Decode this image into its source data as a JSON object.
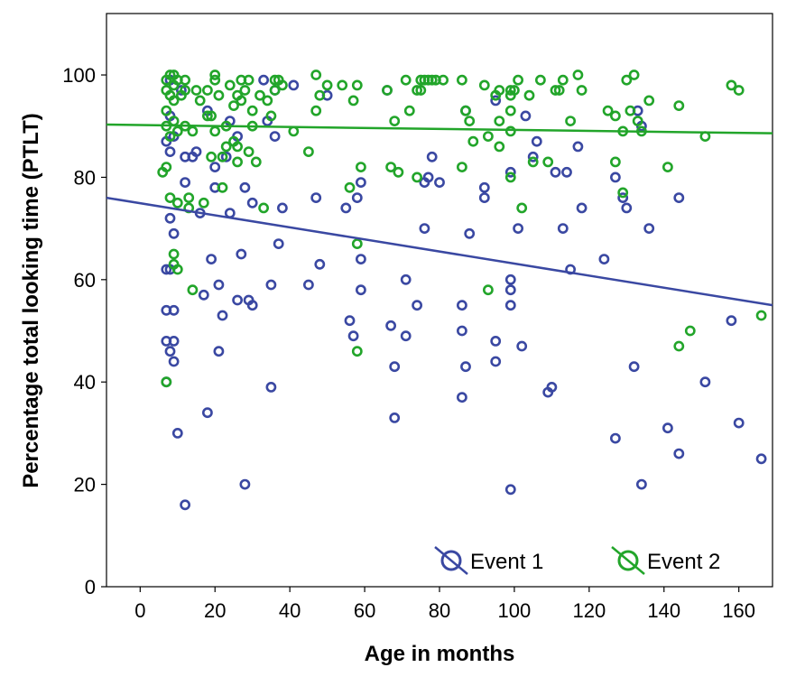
{
  "chart_data": {
    "type": "scatter",
    "xlabel": "Age in months",
    "ylabel": "Percentage total looking time (PTLT)",
    "xlim": [
      -9,
      169
    ],
    "ylim": [
      0,
      112
    ],
    "xticks": [
      0,
      20,
      40,
      60,
      80,
      100,
      120,
      140,
      160
    ],
    "yticks": [
      0,
      20,
      40,
      60,
      80,
      100
    ],
    "grid": false,
    "legend_position": "bottom-right",
    "series": [
      {
        "name": "Event 1",
        "color": "#3a48a2",
        "fit_line": {
          "x": [
            -9,
            169
          ],
          "y": [
            76,
            55
          ]
        },
        "points": [
          [
            7,
            87
          ],
          [
            7,
            62
          ],
          [
            7,
            54
          ],
          [
            7,
            48
          ],
          [
            7,
            40
          ],
          [
            8,
            99
          ],
          [
            8,
            92
          ],
          [
            8,
            85
          ],
          [
            8,
            72
          ],
          [
            8,
            62
          ],
          [
            8,
            46
          ],
          [
            9,
            88
          ],
          [
            9,
            69
          ],
          [
            9,
            54
          ],
          [
            9,
            48
          ],
          [
            9,
            44
          ],
          [
            10,
            30
          ],
          [
            11,
            97
          ],
          [
            12,
            84
          ],
          [
            12,
            79
          ],
          [
            12,
            16
          ],
          [
            14,
            84
          ],
          [
            15,
            85
          ],
          [
            16,
            73
          ],
          [
            17,
            57
          ],
          [
            18,
            93
          ],
          [
            18,
            34
          ],
          [
            19,
            64
          ],
          [
            20,
            82
          ],
          [
            20,
            78
          ],
          [
            21,
            59
          ],
          [
            21,
            46
          ],
          [
            22,
            53
          ],
          [
            23,
            84
          ],
          [
            24,
            91
          ],
          [
            24,
            73
          ],
          [
            26,
            88
          ],
          [
            26,
            56
          ],
          [
            27,
            65
          ],
          [
            28,
            78
          ],
          [
            28,
            20
          ],
          [
            29,
            56
          ],
          [
            30,
            55
          ],
          [
            30,
            75
          ],
          [
            33,
            99
          ],
          [
            34,
            91
          ],
          [
            35,
            59
          ],
          [
            35,
            39
          ],
          [
            36,
            88
          ],
          [
            36,
            97
          ],
          [
            37,
            67
          ],
          [
            38,
            74
          ],
          [
            41,
            98
          ],
          [
            45,
            59
          ],
          [
            47,
            76
          ],
          [
            48,
            63
          ],
          [
            50,
            96
          ],
          [
            55,
            74
          ],
          [
            56,
            52
          ],
          [
            57,
            49
          ],
          [
            58,
            76
          ],
          [
            59,
            64
          ],
          [
            59,
            58
          ],
          [
            59,
            79
          ],
          [
            66,
            97
          ],
          [
            67,
            51
          ],
          [
            68,
            43
          ],
          [
            68,
            33
          ],
          [
            71,
            60
          ],
          [
            71,
            49
          ],
          [
            74,
            55
          ],
          [
            76,
            79
          ],
          [
            76,
            70
          ],
          [
            77,
            80
          ],
          [
            78,
            84
          ],
          [
            80,
            79
          ],
          [
            86,
            55
          ],
          [
            86,
            50
          ],
          [
            86,
            37
          ],
          [
            87,
            93
          ],
          [
            87,
            43
          ],
          [
            88,
            69
          ],
          [
            92,
            78
          ],
          [
            92,
            76
          ],
          [
            95,
            95
          ],
          [
            95,
            48
          ],
          [
            95,
            44
          ],
          [
            99,
            60
          ],
          [
            99,
            58
          ],
          [
            99,
            55
          ],
          [
            99,
            19
          ],
          [
            99,
            81
          ],
          [
            101,
            70
          ],
          [
            102,
            47
          ],
          [
            103,
            92
          ],
          [
            105,
            84
          ],
          [
            106,
            87
          ],
          [
            109,
            38
          ],
          [
            110,
            39
          ],
          [
            111,
            81
          ],
          [
            113,
            70
          ],
          [
            114,
            81
          ],
          [
            115,
            62
          ],
          [
            117,
            86
          ],
          [
            118,
            74
          ],
          [
            124,
            64
          ],
          [
            127,
            29
          ],
          [
            127,
            80
          ],
          [
            129,
            76
          ],
          [
            130,
            74
          ],
          [
            132,
            43
          ],
          [
            133,
            93
          ],
          [
            134,
            90
          ],
          [
            134,
            20
          ],
          [
            136,
            70
          ],
          [
            141,
            31
          ],
          [
            144,
            76
          ],
          [
            144,
            26
          ],
          [
            151,
            40
          ],
          [
            158,
            52
          ],
          [
            160,
            32
          ],
          [
            166,
            25
          ]
        ]
      },
      {
        "name": "Event 2",
        "color": "#22a52a",
        "fit_line": {
          "x": [
            -9,
            169
          ],
          "y": [
            90.3,
            88.6
          ]
        },
        "points": [
          [
            6,
            81
          ],
          [
            7,
            99
          ],
          [
            7,
            97
          ],
          [
            7,
            93
          ],
          [
            7,
            90
          ],
          [
            7,
            82
          ],
          [
            7,
            40
          ],
          [
            8,
            100
          ],
          [
            8,
            96
          ],
          [
            8,
            88
          ],
          [
            8,
            76
          ],
          [
            9,
            100
          ],
          [
            9,
            98
          ],
          [
            9,
            95
          ],
          [
            9,
            91
          ],
          [
            9,
            65
          ],
          [
            9,
            63
          ],
          [
            10,
            99
          ],
          [
            10,
            89
          ],
          [
            10,
            75
          ],
          [
            10,
            62
          ],
          [
            11,
            96
          ],
          [
            12,
            99
          ],
          [
            12,
            97
          ],
          [
            12,
            90
          ],
          [
            13,
            76
          ],
          [
            13,
            74
          ],
          [
            14,
            89
          ],
          [
            14,
            58
          ],
          [
            15,
            97
          ],
          [
            16,
            95
          ],
          [
            17,
            75
          ],
          [
            18,
            97
          ],
          [
            18,
            92
          ],
          [
            19,
            92
          ],
          [
            19,
            84
          ],
          [
            20,
            99
          ],
          [
            20,
            100
          ],
          [
            20,
            89
          ],
          [
            21,
            96
          ],
          [
            22,
            84
          ],
          [
            22,
            78
          ],
          [
            23,
            90
          ],
          [
            23,
            86
          ],
          [
            24,
            98
          ],
          [
            25,
            94
          ],
          [
            25,
            87
          ],
          [
            26,
            96
          ],
          [
            26,
            86
          ],
          [
            26,
            83
          ],
          [
            27,
            99
          ],
          [
            27,
            95
          ],
          [
            28,
            97
          ],
          [
            29,
            99
          ],
          [
            29,
            85
          ],
          [
            30,
            93
          ],
          [
            30,
            90
          ],
          [
            31,
            83
          ],
          [
            32,
            96
          ],
          [
            33,
            74
          ],
          [
            34,
            95
          ],
          [
            35,
            92
          ],
          [
            36,
            99
          ],
          [
            36,
            97
          ],
          [
            37,
            99
          ],
          [
            38,
            98
          ],
          [
            41,
            89
          ],
          [
            45,
            85
          ],
          [
            47,
            100
          ],
          [
            47,
            93
          ],
          [
            48,
            96
          ],
          [
            50,
            98
          ],
          [
            54,
            98
          ],
          [
            56,
            78
          ],
          [
            57,
            95
          ],
          [
            58,
            98
          ],
          [
            58,
            67
          ],
          [
            58,
            46
          ],
          [
            59,
            82
          ],
          [
            66,
            97
          ],
          [
            67,
            82
          ],
          [
            68,
            91
          ],
          [
            69,
            81
          ],
          [
            71,
            99
          ],
          [
            72,
            93
          ],
          [
            74,
            80
          ],
          [
            74,
            97
          ],
          [
            75,
            99
          ],
          [
            75,
            97
          ],
          [
            76,
            99
          ],
          [
            77,
            99
          ],
          [
            78,
            99
          ],
          [
            79,
            99
          ],
          [
            81,
            99
          ],
          [
            86,
            99
          ],
          [
            86,
            82
          ],
          [
            87,
            93
          ],
          [
            88,
            91
          ],
          [
            89,
            87
          ],
          [
            92,
            98
          ],
          [
            93,
            88
          ],
          [
            93,
            58
          ],
          [
            95,
            96
          ],
          [
            96,
            97
          ],
          [
            96,
            91
          ],
          [
            96,
            86
          ],
          [
            99,
            97
          ],
          [
            99,
            96
          ],
          [
            99,
            93
          ],
          [
            99,
            89
          ],
          [
            99,
            80
          ],
          [
            100,
            97
          ],
          [
            101,
            99
          ],
          [
            102,
            74
          ],
          [
            104,
            96
          ],
          [
            105,
            83
          ],
          [
            107,
            99
          ],
          [
            109,
            83
          ],
          [
            111,
            97
          ],
          [
            112,
            97
          ],
          [
            113,
            99
          ],
          [
            115,
            91
          ],
          [
            117,
            100
          ],
          [
            118,
            97
          ],
          [
            125,
            93
          ],
          [
            127,
            92
          ],
          [
            127,
            83
          ],
          [
            129,
            77
          ],
          [
            129,
            89
          ],
          [
            130,
            99
          ],
          [
            131,
            93
          ],
          [
            132,
            100
          ],
          [
            133,
            91
          ],
          [
            134,
            89
          ],
          [
            136,
            95
          ],
          [
            141,
            82
          ],
          [
            144,
            94
          ],
          [
            144,
            47
          ],
          [
            147,
            50
          ],
          [
            151,
            88
          ],
          [
            158,
            98
          ],
          [
            160,
            97
          ],
          [
            166,
            53
          ]
        ]
      }
    ]
  }
}
